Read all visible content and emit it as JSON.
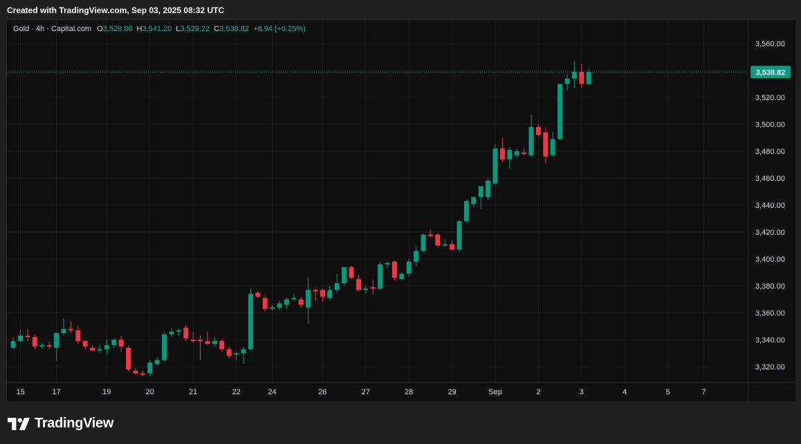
{
  "header": {
    "created_text": "Created with TradingView.com, Sep 03, 2025 08:32 UTC"
  },
  "legend": {
    "symbol": "Gold · 4h · Capital.com",
    "open_label": "O",
    "open": "3,529.86",
    "high_label": "H",
    "high": "3,541.20",
    "low_label": "L",
    "low": "3,529.22",
    "close_label": "C",
    "close": "3,538.82",
    "change": "+8.94 (+0.25%)"
  },
  "footer": {
    "brand": "TradingView",
    "brand_icon": "tradingview-logo-icon"
  },
  "colors": {
    "up": "#089981",
    "down": "#f23645",
    "background": "#0f0f0f",
    "grid": "#1e1e1e",
    "axis_text": "#d1d4dc",
    "price_label_bg": "#089981"
  },
  "chart_data": {
    "type": "candlestick",
    "title": "Gold · 4h · Capital.com",
    "interval": "4h",
    "last_price": 3538.82,
    "last_price_label": "3,538.82",
    "ylim": [
      3310,
      3570
    ],
    "y_ticks": [
      3320,
      3340,
      3360,
      3380,
      3400,
      3420,
      3440,
      3460,
      3480,
      3500,
      3520,
      3540,
      3560
    ],
    "y_tick_labels": [
      "3,320.00",
      "3,340.00",
      "3,360.00",
      "3,380.00",
      "3,400.00",
      "3,420.00",
      "3,440.00",
      "3,460.00",
      "3,480.00",
      "3,500.00",
      "3,520.00",
      "3,540.00",
      "3,560.00"
    ],
    "x_ticks": [
      {
        "label": "15",
        "index": 1
      },
      {
        "label": "17",
        "index": 6
      },
      {
        "label": "19",
        "index": 13
      },
      {
        "label": "20",
        "index": 19
      },
      {
        "label": "21",
        "index": 25
      },
      {
        "label": "22",
        "index": 31
      },
      {
        "label": "24",
        "index": 36
      },
      {
        "label": "26",
        "index": 43
      },
      {
        "label": "27",
        "index": 49
      },
      {
        "label": "28",
        "index": 55
      },
      {
        "label": "29",
        "index": 61
      },
      {
        "label": "Sep",
        "index": 67
      },
      {
        "label": "2",
        "index": 73
      },
      {
        "label": "3",
        "index": 79
      },
      {
        "label": "4",
        "index": 85
      },
      {
        "label": "5",
        "index": 91
      },
      {
        "label": "7",
        "index": 96
      }
    ],
    "grid": true,
    "total_slots": 103,
    "candles": [
      {
        "o": 3334,
        "h": 3342,
        "l": 3333,
        "c": 3339
      },
      {
        "o": 3339,
        "h": 3347,
        "l": 3338,
        "c": 3343
      },
      {
        "o": 3343,
        "h": 3348,
        "l": 3339,
        "c": 3342
      },
      {
        "o": 3342,
        "h": 3344,
        "l": 3333,
        "c": 3335
      },
      {
        "o": 3335,
        "h": 3338,
        "l": 3333,
        "c": 3336
      },
      {
        "o": 3336,
        "h": 3339,
        "l": 3333,
        "c": 3335
      },
      {
        "o": 3334,
        "h": 3345,
        "l": 3324,
        "c": 3345
      },
      {
        "o": 3345,
        "h": 3356,
        "l": 3343,
        "c": 3348
      },
      {
        "o": 3348,
        "h": 3354,
        "l": 3345,
        "c": 3347
      },
      {
        "o": 3347,
        "h": 3350,
        "l": 3337,
        "c": 3339
      },
      {
        "o": 3339,
        "h": 3340,
        "l": 3333,
        "c": 3335
      },
      {
        "o": 3334,
        "h": 3336,
        "l": 3332,
        "c": 3332
      },
      {
        "o": 3332,
        "h": 3336,
        "l": 3330,
        "c": 3333
      },
      {
        "o": 3333,
        "h": 3340,
        "l": 3329,
        "c": 3336
      },
      {
        "o": 3336,
        "h": 3341,
        "l": 3334,
        "c": 3340
      },
      {
        "o": 3340,
        "h": 3343,
        "l": 3331,
        "c": 3335
      },
      {
        "o": 3334,
        "h": 3336,
        "l": 3316,
        "c": 3318
      },
      {
        "o": 3317,
        "h": 3319,
        "l": 3314,
        "c": 3315
      },
      {
        "o": 3315,
        "h": 3317,
        "l": 3313,
        "c": 3314
      },
      {
        "o": 3315,
        "h": 3325,
        "l": 3313,
        "c": 3323
      },
      {
        "o": 3322,
        "h": 3327,
        "l": 3321,
        "c": 3325
      },
      {
        "o": 3325,
        "h": 3346,
        "l": 3324,
        "c": 3344
      },
      {
        "o": 3344,
        "h": 3349,
        "l": 3342,
        "c": 3346
      },
      {
        "o": 3346,
        "h": 3348,
        "l": 3343,
        "c": 3347
      },
      {
        "o": 3349,
        "h": 3351,
        "l": 3339,
        "c": 3341
      },
      {
        "o": 3340,
        "h": 3346,
        "l": 3338,
        "c": 3339
      },
      {
        "o": 3340,
        "h": 3343,
        "l": 3325,
        "c": 3339
      },
      {
        "o": 3339,
        "h": 3346,
        "l": 3336,
        "c": 3337
      },
      {
        "o": 3337,
        "h": 3342,
        "l": 3335,
        "c": 3339
      },
      {
        "o": 3339,
        "h": 3340,
        "l": 3331,
        "c": 3333
      },
      {
        "o": 3333,
        "h": 3335,
        "l": 3326,
        "c": 3328
      },
      {
        "o": 3329,
        "h": 3331,
        "l": 3325,
        "c": 3330
      },
      {
        "o": 3330,
        "h": 3335,
        "l": 3322,
        "c": 3333
      },
      {
        "o": 3333,
        "h": 3378,
        "l": 3332,
        "c": 3374
      },
      {
        "o": 3375,
        "h": 3376,
        "l": 3371,
        "c": 3372
      },
      {
        "o": 3371,
        "h": 3373,
        "l": 3361,
        "c": 3363
      },
      {
        "o": 3363,
        "h": 3366,
        "l": 3362,
        "c": 3364
      },
      {
        "o": 3364,
        "h": 3369,
        "l": 3362,
        "c": 3367
      },
      {
        "o": 3366,
        "h": 3371,
        "l": 3363,
        "c": 3370
      },
      {
        "o": 3370,
        "h": 3374,
        "l": 3369,
        "c": 3371
      },
      {
        "o": 3370,
        "h": 3372,
        "l": 3364,
        "c": 3366
      },
      {
        "o": 3364,
        "h": 3386,
        "l": 3352,
        "c": 3377
      },
      {
        "o": 3377,
        "h": 3379,
        "l": 3369,
        "c": 3376
      },
      {
        "o": 3377,
        "h": 3378,
        "l": 3368,
        "c": 3372
      },
      {
        "o": 3371,
        "h": 3380,
        "l": 3369,
        "c": 3377
      },
      {
        "o": 3377,
        "h": 3389,
        "l": 3375,
        "c": 3382
      },
      {
        "o": 3382,
        "h": 3394,
        "l": 3380,
        "c": 3394
      },
      {
        "o": 3394,
        "h": 3395,
        "l": 3385,
        "c": 3386
      },
      {
        "o": 3385,
        "h": 3388,
        "l": 3376,
        "c": 3377
      },
      {
        "o": 3377,
        "h": 3380,
        "l": 3374,
        "c": 3378
      },
      {
        "o": 3379,
        "h": 3385,
        "l": 3374,
        "c": 3378
      },
      {
        "o": 3378,
        "h": 3398,
        "l": 3377,
        "c": 3396
      },
      {
        "o": 3396,
        "h": 3398,
        "l": 3393,
        "c": 3397
      },
      {
        "o": 3398,
        "h": 3399,
        "l": 3384,
        "c": 3386
      },
      {
        "o": 3385,
        "h": 3390,
        "l": 3384,
        "c": 3389
      },
      {
        "o": 3389,
        "h": 3400,
        "l": 3387,
        "c": 3398
      },
      {
        "o": 3398,
        "h": 3409,
        "l": 3395,
        "c": 3406
      },
      {
        "o": 3406,
        "h": 3419,
        "l": 3405,
        "c": 3418
      },
      {
        "o": 3418,
        "h": 3422,
        "l": 3416,
        "c": 3417
      },
      {
        "o": 3418,
        "h": 3419,
        "l": 3409,
        "c": 3410
      },
      {
        "o": 3410,
        "h": 3415,
        "l": 3409,
        "c": 3411
      },
      {
        "o": 3411,
        "h": 3414,
        "l": 3406,
        "c": 3407
      },
      {
        "o": 3407,
        "h": 3429,
        "l": 3405,
        "c": 3428
      },
      {
        "o": 3428,
        "h": 3444,
        "l": 3427,
        "c": 3443
      },
      {
        "o": 3441,
        "h": 3446,
        "l": 3439,
        "c": 3446
      },
      {
        "o": 3446,
        "h": 3452,
        "l": 3437,
        "c": 3454
      },
      {
        "o": 3446,
        "h": 3459,
        "l": 3444,
        "c": 3458
      },
      {
        "o": 3456,
        "h": 3485,
        "l": 3455,
        "c": 3482
      },
      {
        "o": 3482,
        "h": 3490,
        "l": 3472,
        "c": 3474
      },
      {
        "o": 3474,
        "h": 3483,
        "l": 3467,
        "c": 3481
      },
      {
        "o": 3477,
        "h": 3482,
        "l": 3475,
        "c": 3480
      },
      {
        "o": 3479,
        "h": 3482,
        "l": 3477,
        "c": 3478
      },
      {
        "o": 3477,
        "h": 3507,
        "l": 3476,
        "c": 3498
      },
      {
        "o": 3498,
        "h": 3500,
        "l": 3491,
        "c": 3492
      },
      {
        "o": 3494,
        "h": 3498,
        "l": 3471,
        "c": 3476
      },
      {
        "o": 3477,
        "h": 3494,
        "l": 3476,
        "c": 3489
      },
      {
        "o": 3489,
        "h": 3529,
        "l": 3489,
        "c": 3530
      },
      {
        "o": 3530,
        "h": 3537,
        "l": 3525,
        "c": 3534
      },
      {
        "o": 3534,
        "h": 3547,
        "l": 3527,
        "c": 3539
      },
      {
        "o": 3539,
        "h": 3545,
        "l": 3527,
        "c": 3530
      },
      {
        "o": 3529.86,
        "h": 3541.2,
        "l": 3529.22,
        "c": 3538.82
      }
    ]
  }
}
